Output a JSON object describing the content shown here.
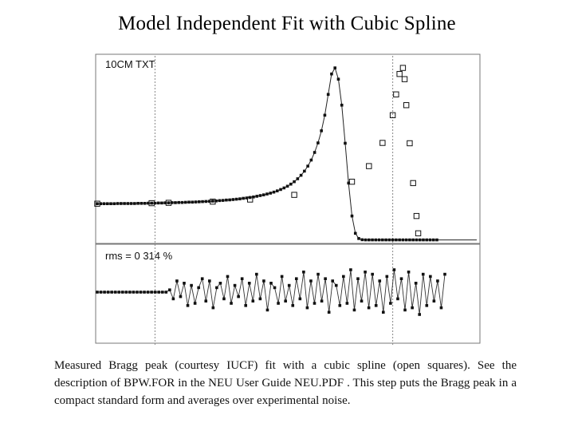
{
  "title": "Model Independent Fit with Cubic Spline",
  "caption": "Measured Bragg peak (courtesy IUCF) fit with a cubic spline (open squares). See the description of BPW.FOR in the NEU User Guide NEU.PDF . This step puts the Bragg peak in a compact standard form and averages over experimental noise.",
  "chart_data": [
    {
      "type": "line",
      "panel": "upper",
      "label": "10CM TXT",
      "marker_filled": "measured data (small filled squares)",
      "marker_open": "cubic spline knots (open squares)",
      "series": [
        {
          "marker": "filled-square",
          "x": [
            0,
            0.01,
            0.02,
            0.03,
            0.04,
            0.05,
            0.06,
            0.07,
            0.08,
            0.09,
            0.1,
            0.11,
            0.12,
            0.13,
            0.14,
            0.15,
            0.16,
            0.17,
            0.18,
            0.19,
            0.2,
            0.21,
            0.22,
            0.23,
            0.24,
            0.25,
            0.26,
            0.27,
            0.28,
            0.29,
            0.3,
            0.31,
            0.32,
            0.33,
            0.34,
            0.35,
            0.36,
            0.37,
            0.38,
            0.39,
            0.4,
            0.41,
            0.42,
            0.43,
            0.44,
            0.45,
            0.46,
            0.47,
            0.48,
            0.49,
            0.5,
            0.51,
            0.52,
            0.53,
            0.54,
            0.55,
            0.56,
            0.57,
            0.58,
            0.59,
            0.6,
            0.61,
            0.62,
            0.63,
            0.64,
            0.65,
            0.66,
            0.67,
            0.68,
            0.69,
            0.7,
            0.71,
            0.72,
            0.73,
            0.74,
            0.75,
            0.76,
            0.77,
            0.78,
            0.79,
            0.8,
            0.81,
            0.82,
            0.83,
            0.84,
            0.85,
            0.86,
            0.87,
            0.88,
            0.89,
            0.9,
            0.91,
            0.92,
            0.93,
            0.94,
            0.95,
            0.96,
            0.97,
            0.98,
            0.99,
            1.0
          ],
          "y": [
            0.211,
            0.211,
            0.211,
            0.211,
            0.211,
            0.211,
            0.212,
            0.212,
            0.212,
            0.212,
            0.212,
            0.212,
            0.213,
            0.213,
            0.213,
            0.214,
            0.214,
            0.214,
            0.215,
            0.215,
            0.216,
            0.216,
            0.217,
            0.217,
            0.218,
            0.218,
            0.219,
            0.22,
            0.22,
            0.221,
            0.222,
            0.223,
            0.224,
            0.225,
            0.226,
            0.227,
            0.229,
            0.23,
            0.232,
            0.233,
            0.235,
            0.237,
            0.239,
            0.242,
            0.244,
            0.247,
            0.25,
            0.254,
            0.258,
            0.262,
            0.267,
            0.272,
            0.278,
            0.285,
            0.293,
            0.302,
            0.312,
            0.324,
            0.338,
            0.355,
            0.375,
            0.399,
            0.428,
            0.463,
            0.507,
            0.562,
            0.632,
            0.722,
            0.842,
            0.96,
            0.995,
            0.93,
            0.78,
            0.56,
            0.33,
            0.14,
            0.04,
            0.01,
            0.003,
            0.002,
            0.002,
            0.002,
            0.002,
            0.002,
            0.002,
            0.002,
            0.002,
            0.002,
            0.002,
            0.002,
            0.002,
            0.002,
            0.002,
            0.002,
            0.002,
            0.002,
            0.002,
            0.002,
            0.002,
            0.002,
            0.002
          ]
        },
        {
          "marker": "open-square",
          "x": [
            0.0,
            0.16,
            0.21,
            0.34,
            0.45,
            0.58,
            0.75,
            0.8,
            0.84,
            0.87,
            0.88,
            0.89,
            0.9,
            0.905,
            0.91,
            0.92,
            0.93,
            0.94,
            0.945
          ],
          "y": [
            0.211,
            0.214,
            0.216,
            0.223,
            0.235,
            0.262,
            0.338,
            0.428,
            0.562,
            0.722,
            0.842,
            0.96,
            0.995,
            0.93,
            0.78,
            0.56,
            0.33,
            0.14,
            0.04
          ]
        }
      ],
      "xlim": [
        0,
        1
      ],
      "ylim": [
        0,
        1
      ],
      "vertical_reference_lines": [
        0.17,
        0.87
      ]
    },
    {
      "type": "line",
      "panel": "lower",
      "label": "rms = 0 314 %",
      "series": [
        {
          "marker": "filled-square",
          "values": [
            0.0,
            0.0,
            0.0,
            0.0,
            0.0,
            0.0,
            0.0,
            0.0,
            0.0,
            0.0,
            0.0,
            0.0,
            0.0,
            0.0,
            0.0,
            0.0,
            0.0,
            0.0,
            0.0,
            0.0,
            0.1,
            -0.3,
            0.5,
            -0.2,
            0.4,
            -0.6,
            0.3,
            -0.5,
            0.2,
            0.6,
            -0.4,
            0.5,
            -0.7,
            0.2,
            0.4,
            -0.3,
            0.7,
            -0.5,
            0.3,
            -0.2,
            0.6,
            -0.6,
            0.4,
            -0.4,
            0.8,
            -0.3,
            0.5,
            -0.8,
            0.4,
            0.2,
            -0.5,
            0.7,
            -0.4,
            0.3,
            -0.6,
            0.6,
            -0.3,
            0.9,
            -0.7,
            0.5,
            -0.5,
            0.8,
            -0.4,
            0.6,
            -0.9,
            0.5,
            0.3,
            -0.6,
            0.7,
            -0.5,
            1.0,
            -0.8,
            0.6,
            -0.4,
            0.9,
            -0.7,
            0.8,
            -0.6,
            0.5,
            -0.9,
            0.7,
            -0.5,
            1.0,
            -0.3,
            0.6,
            -0.8,
            0.9,
            -0.7,
            0.4,
            -1.0,
            0.8,
            -0.6,
            0.7,
            -0.4,
            0.5,
            -0.7,
            0.8
          ],
          "pattern_note": "noise residual of fit around zero baseline"
        }
      ],
      "ylim": [
        -1.2,
        1.2
      ]
    }
  ]
}
